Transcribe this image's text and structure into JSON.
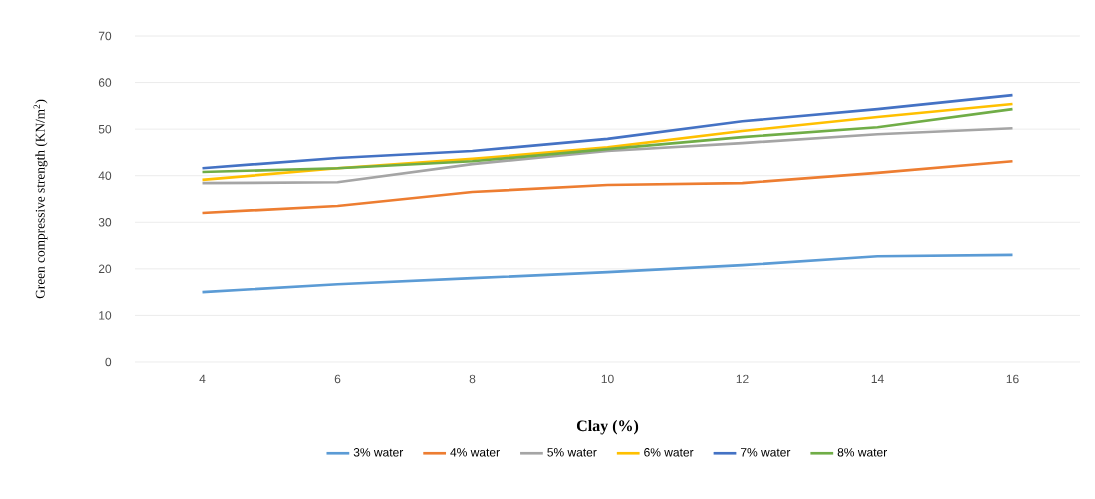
{
  "chart_data": {
    "type": "line",
    "xlabel": "Clay  (%)",
    "ylabel": "Green compressive strength (KN/m$^{2}$)",
    "categories": [
      "4",
      "6",
      "8",
      "10",
      "12",
      "14",
      "16"
    ],
    "series": [
      {
        "name": "3% water",
        "color": "#5b9bd5",
        "values": [
          15.0,
          16.7,
          18.0,
          19.3,
          20.8,
          22.7,
          23.0
        ]
      },
      {
        "name": "4% water",
        "color": "#ed7d31",
        "values": [
          32.0,
          33.5,
          36.5,
          38.0,
          38.4,
          40.6,
          43.1
        ]
      },
      {
        "name": "5% water",
        "color": "#a5a5a5",
        "values": [
          38.4,
          38.6,
          42.5,
          45.3,
          47.0,
          48.9,
          50.2
        ]
      },
      {
        "name": "6% water",
        "color": "#ffc000",
        "values": [
          39.1,
          41.6,
          43.6,
          46.1,
          49.6,
          52.6,
          55.4
        ]
      },
      {
        "name": "7% water",
        "color": "#4472c4",
        "values": [
          41.6,
          43.8,
          45.3,
          47.9,
          51.7,
          54.3,
          57.3
        ]
      },
      {
        "name": "8% water",
        "color": "#70ad47",
        "values": [
          40.8,
          41.6,
          43.1,
          45.7,
          48.3,
          50.4,
          54.3
        ]
      }
    ],
    "ylim": [
      0,
      70
    ],
    "yticks": [
      0,
      10,
      20,
      30,
      40,
      50,
      60,
      70
    ],
    "grid": "y",
    "legend": "bottom",
    "line_style": "solid"
  }
}
